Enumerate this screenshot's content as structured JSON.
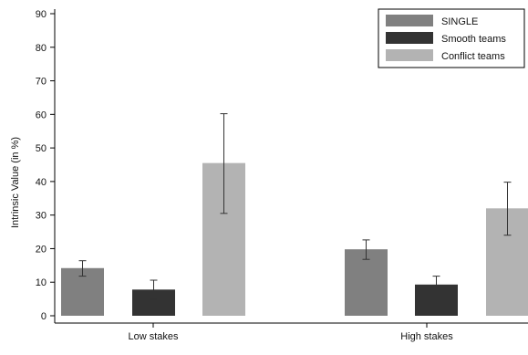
{
  "chart_data": {
    "type": "bar",
    "title": "",
    "xlabel": "",
    "ylabel": "Intrinsic Value (in %)",
    "ylim": [
      0,
      90
    ],
    "yticks": [
      0,
      10,
      20,
      30,
      40,
      50,
      60,
      70,
      80,
      90
    ],
    "categories": [
      "Low stakes",
      "High stakes"
    ],
    "grid": false,
    "legend_position": "top-right",
    "series": [
      {
        "name": "SINGLE",
        "color": "#808080",
        "values": [
          14.2,
          19.8
        ],
        "ci_low": [
          11.8,
          16.8
        ],
        "ci_high": [
          16.4,
          22.6
        ]
      },
      {
        "name": "Smooth teams",
        "color": "#333333",
        "values": [
          7.8,
          9.3
        ],
        "ci_low": [
          4.8,
          6.8
        ],
        "ci_high": [
          10.6,
          11.8
        ]
      },
      {
        "name": "Conflict teams",
        "color": "#b3b3b3",
        "values": [
          45.5,
          32.0
        ],
        "ci_low": [
          30.5,
          24.0
        ],
        "ci_high": [
          60.2,
          39.8
        ]
      }
    ]
  }
}
